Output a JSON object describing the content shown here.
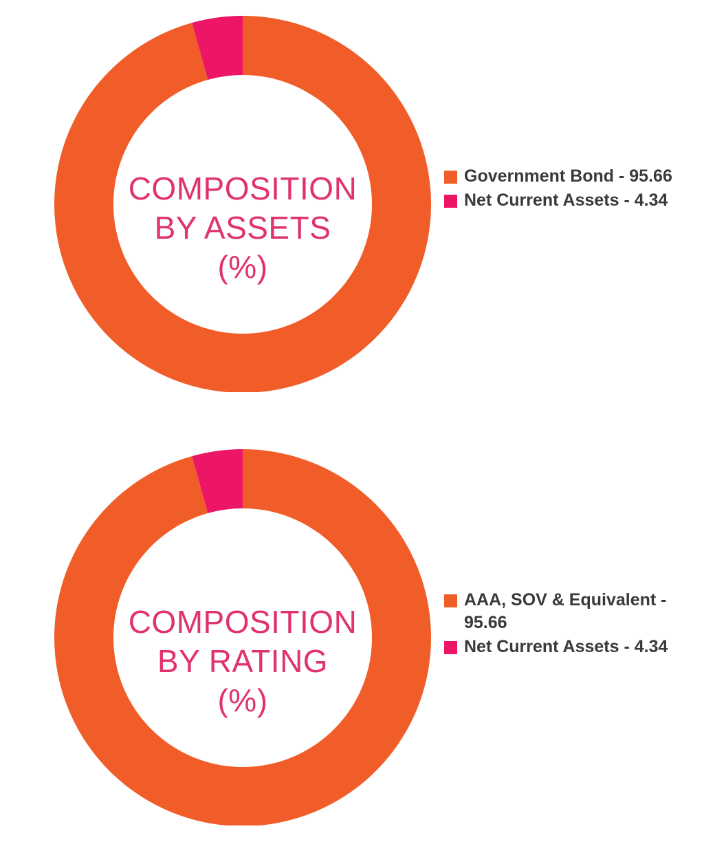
{
  "colors": {
    "orange": "#f15d28",
    "magenta": "#ec1566",
    "title": "#e0336c",
    "legend_text": "#3a3a3a"
  },
  "chart_data": [
    {
      "type": "pie",
      "title_lines": [
        "COMPOSITION",
        "BY ASSETS",
        "(%)"
      ],
      "slices": [
        {
          "label": "Government Bond - 95.66",
          "name": "Government Bond",
          "value": 95.66,
          "color": "#f15d28"
        },
        {
          "label": "Net Current Assets - 4.34",
          "name": "Net Current Assets",
          "value": 4.34,
          "color": "#ec1566"
        }
      ],
      "legend_position": "right"
    },
    {
      "type": "pie",
      "title_lines": [
        "COMPOSITION",
        "BY RATING",
        "(%)"
      ],
      "slices": [
        {
          "label": "AAA, SOV & Equivalent - 95.66",
          "name": "AAA, SOV & Equivalent",
          "value": 95.66,
          "color": "#f15d28"
        },
        {
          "label": "Net Current Assets - 4.34",
          "name": "Net Current Assets",
          "value": 4.34,
          "color": "#ec1566"
        }
      ],
      "legend_position": "right"
    }
  ]
}
